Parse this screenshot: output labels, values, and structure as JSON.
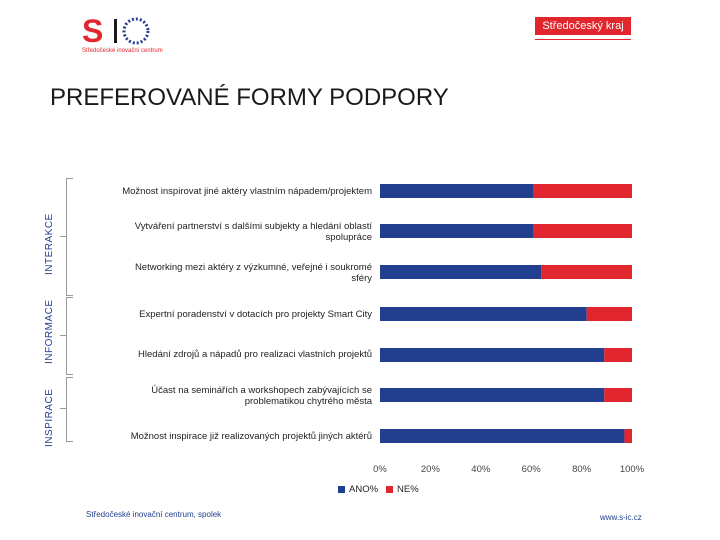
{
  "header": {
    "logo_text": "S|C",
    "logo_subtitle": "Středočeské inovační centrum",
    "region_label": "Středočeský kraj"
  },
  "title": "PREFEROVANÉ FORMY PODPORY",
  "groups": [
    "INTERAKCE",
    "INFORMACE",
    "INSPIRACE"
  ],
  "footer": {
    "left": "Středočeské inovační centrum, spolek",
    "right": "www.s-ic.cz"
  },
  "colors": {
    "accent": "#e1262d",
    "ano": "#223f8f",
    "ne": "#e1262d"
  },
  "chart_data": {
    "type": "bar",
    "orientation": "horizontal",
    "stacked": true,
    "categories": [
      "Možnost inspirovat jiné aktéry vlastním nápadem/projektem",
      "Vytváření partnerství s dalšími subjekty a hledání oblastí spolupráce",
      "Networking mezi aktéry z výzkumné, veřejné i soukromé sféry",
      "Expertní poradenství v dotacích pro projekty Smart City",
      "Hledání zdrojů a nápadů pro realizaci vlastních projektů",
      "Účast na seminářích a workshopech zabývajících se problematikou chytrého města",
      "Možnost inspirace již realizovaných projektů jiných aktérů"
    ],
    "series": [
      {
        "name": "ANO%",
        "values": [
          61,
          61,
          64,
          82,
          89,
          89,
          97
        ]
      },
      {
        "name": "NE%",
        "values": [
          39,
          39,
          36,
          18,
          11,
          11,
          3
        ]
      }
    ],
    "xlim": [
      0,
      100
    ],
    "xticks": [
      "0%",
      "20%",
      "40%",
      "60%",
      "80%",
      "100%"
    ],
    "legend_position": "bottom"
  }
}
